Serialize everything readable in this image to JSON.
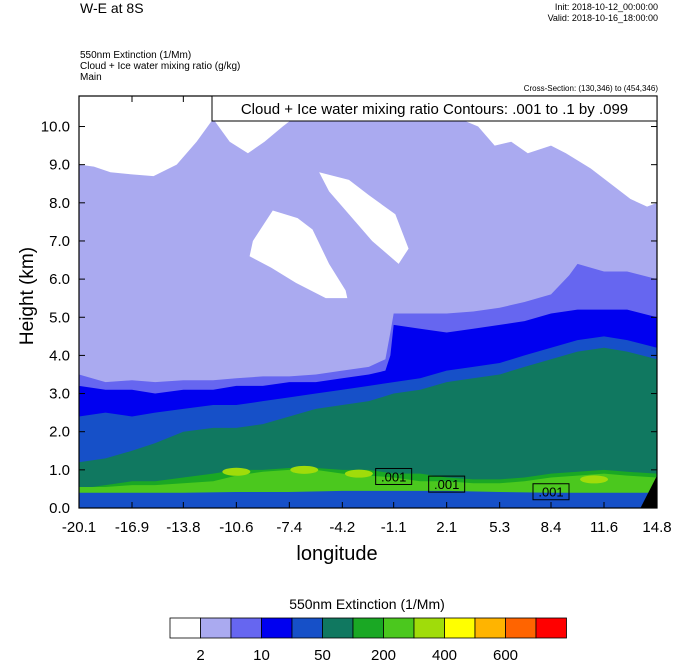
{
  "header": {
    "title": "W-E at 8S",
    "init": "Init: 2018-10-12_00:00:00",
    "valid": "Valid: 2018-10-16_18:00:00",
    "variable1": "550nm Extinction   (1/Mm)",
    "variable2": "Cloud + Ice water mixing ratio   (g/kg)",
    "variable3": "Main",
    "cross_section": "Cross-Section: (130,346) to (454,346)"
  },
  "chart_data": {
    "type": "contour",
    "title": "W-E at 8S",
    "xlabel": "longitude",
    "ylabel": "Height (km)",
    "xlim": [
      -20.1,
      14.8
    ],
    "ylim": [
      0,
      10.8
    ],
    "x_ticks": [
      "-20.1",
      "-16.9",
      "-13.8",
      "-10.6",
      "-7.4",
      "-4.2",
      "-1.1",
      "2.1",
      "5.3",
      "8.4",
      "11.6",
      "14.8"
    ],
    "x_tick_values": [
      -20.1,
      -16.9,
      -13.8,
      -10.6,
      -7.4,
      -4.2,
      -1.1,
      2.1,
      5.3,
      8.4,
      11.6,
      14.8
    ],
    "y_ticks": [
      "0.0",
      "1.0",
      "2.0",
      "3.0",
      "4.0",
      "5.0",
      "6.0",
      "7.0",
      "8.0",
      "9.0",
      "10.0"
    ],
    "y_tick_values": [
      0,
      1,
      2,
      3,
      4,
      5,
      6,
      7,
      8,
      9,
      10
    ],
    "contour_info": "Cloud + Ice water mixing ratio Contours: .001 to .1 by .099",
    "contour_labels": [
      {
        "text": ".001",
        "x": -1.1,
        "y": 0.8
      },
      {
        "text": ".001",
        "x": 2.1,
        "y": 0.6
      },
      {
        "text": ".001",
        "x": 8.4,
        "y": 0.4
      }
    ],
    "colorbar": {
      "title": "550nm Extinction  (1/Mm)",
      "colors": [
        "#ffffff",
        "#aaaaf0",
        "#6666f0",
        "#0000f0",
        "#1650c8",
        "#107860",
        "#1aa824",
        "#4bc81e",
        "#a0dc0a",
        "#ffff00",
        "#ffb400",
        "#ff6400",
        "#ff0000"
      ],
      "labels": [
        "2",
        "10",
        "50",
        "200",
        "400",
        "600"
      ]
    },
    "layers": [
      {
        "level": "2",
        "color": "#aaaaf0",
        "top": [
          [
            -20.1,
            10.8
          ],
          [
            14.8,
            10.8
          ]
        ]
      },
      {
        "level": "10",
        "color": "#6666f0",
        "top": [
          [
            -20.1,
            3.5
          ],
          [
            -18.5,
            3.3
          ],
          [
            -16.9,
            3.35
          ],
          [
            -15.5,
            3.3
          ],
          [
            -13.8,
            3.35
          ],
          [
            -12.0,
            3.35
          ],
          [
            -10.6,
            3.4
          ],
          [
            -9.0,
            3.45
          ],
          [
            -7.4,
            3.45
          ],
          [
            -5.8,
            3.5
          ],
          [
            -4.2,
            3.6
          ],
          [
            -2.6,
            3.7
          ],
          [
            -1.6,
            3.9
          ],
          [
            -1.3,
            4.6
          ],
          [
            -1.1,
            5.1
          ],
          [
            0.5,
            5.1
          ],
          [
            2.1,
            5.1
          ],
          [
            3.7,
            5.15
          ],
          [
            5.3,
            5.25
          ],
          [
            6.8,
            5.4
          ],
          [
            8.4,
            5.6
          ],
          [
            9.5,
            6.1
          ],
          [
            10.0,
            6.4
          ],
          [
            11.6,
            6.2
          ],
          [
            13.0,
            6.2
          ],
          [
            14.8,
            6.0
          ]
        ]
      },
      {
        "level": "50",
        "color": "#0000f0",
        "top": [
          [
            -20.1,
            3.2
          ],
          [
            -18.5,
            3.1
          ],
          [
            -16.9,
            3.1
          ],
          [
            -15.5,
            3.0
          ],
          [
            -13.8,
            3.1
          ],
          [
            -12.0,
            3.1
          ],
          [
            -10.6,
            3.2
          ],
          [
            -9.0,
            3.2
          ],
          [
            -7.4,
            3.3
          ],
          [
            -5.8,
            3.3
          ],
          [
            -4.2,
            3.4
          ],
          [
            -2.6,
            3.5
          ],
          [
            -1.6,
            3.6
          ],
          [
            -1.3,
            4.0
          ],
          [
            -1.1,
            4.8
          ],
          [
            0.5,
            4.7
          ],
          [
            2.1,
            4.6
          ],
          [
            3.7,
            4.7
          ],
          [
            5.3,
            4.8
          ],
          [
            6.8,
            4.9
          ],
          [
            8.4,
            5.1
          ],
          [
            10.0,
            5.2
          ],
          [
            11.6,
            5.2
          ],
          [
            13.0,
            5.2
          ],
          [
            14.8,
            5.0
          ]
        ]
      },
      {
        "level": "100",
        "color": "#1650c8",
        "top": [
          [
            -20.1,
            2.4
          ],
          [
            -18.5,
            2.5
          ],
          [
            -16.9,
            2.4
          ],
          [
            -15.5,
            2.5
          ],
          [
            -13.8,
            2.6
          ],
          [
            -12.0,
            2.7
          ],
          [
            -10.6,
            2.7
          ],
          [
            -9.0,
            2.8
          ],
          [
            -7.4,
            2.9
          ],
          [
            -5.8,
            3.0
          ],
          [
            -4.2,
            3.1
          ],
          [
            -2.6,
            3.2
          ],
          [
            -1.1,
            3.3
          ],
          [
            0.5,
            3.4
          ],
          [
            2.1,
            3.6
          ],
          [
            3.7,
            3.7
          ],
          [
            5.3,
            3.8
          ],
          [
            6.8,
            4.0
          ],
          [
            8.4,
            4.2
          ],
          [
            10.0,
            4.4
          ],
          [
            11.6,
            4.5
          ],
          [
            13.0,
            4.4
          ],
          [
            14.8,
            4.2
          ]
        ]
      },
      {
        "level": "150",
        "color": "#107860",
        "top": [
          [
            -20.1,
            1.2
          ],
          [
            -18.5,
            1.3
          ],
          [
            -16.9,
            1.5
          ],
          [
            -15.5,
            1.7
          ],
          [
            -13.8,
            2.0
          ],
          [
            -12.0,
            2.1
          ],
          [
            -10.6,
            2.1
          ],
          [
            -9.0,
            2.2
          ],
          [
            -7.4,
            2.4
          ],
          [
            -5.8,
            2.6
          ],
          [
            -4.2,
            2.7
          ],
          [
            -2.6,
            2.8
          ],
          [
            -1.1,
            3.0
          ],
          [
            0.5,
            3.1
          ],
          [
            2.1,
            3.3
          ],
          [
            3.7,
            3.4
          ],
          [
            5.3,
            3.5
          ],
          [
            6.8,
            3.7
          ],
          [
            8.4,
            3.9
          ],
          [
            10.0,
            4.1
          ],
          [
            11.6,
            4.2
          ],
          [
            13.0,
            4.1
          ],
          [
            14.8,
            3.9
          ]
        ]
      },
      {
        "level": "200",
        "color": "#1aa824",
        "top": [
          [
            -20.1,
            0.5
          ],
          [
            -18.5,
            0.6
          ],
          [
            -16.9,
            0.7
          ],
          [
            -15.5,
            0.7
          ],
          [
            -13.8,
            0.8
          ],
          [
            -12.0,
            0.9
          ],
          [
            -10.6,
            1.0
          ],
          [
            -9.0,
            1.0
          ],
          [
            -7.4,
            1.05
          ],
          [
            -5.8,
            1.05
          ],
          [
            -4.2,
            1.0
          ],
          [
            -2.6,
            1.0
          ],
          [
            -1.1,
            0.9
          ],
          [
            0.5,
            0.9
          ],
          [
            2.1,
            0.8
          ],
          [
            3.7,
            0.75
          ],
          [
            5.3,
            0.75
          ],
          [
            6.8,
            0.8
          ],
          [
            8.4,
            0.9
          ],
          [
            10.0,
            0.95
          ],
          [
            11.6,
            1.0
          ],
          [
            13.0,
            0.95
          ],
          [
            14.8,
            0.9
          ]
        ]
      },
      {
        "level": "300",
        "color": "#4bc81e",
        "top": [
          [
            -20.1,
            0.55
          ],
          [
            -18.5,
            0.55
          ],
          [
            -16.9,
            0.6
          ],
          [
            -15.5,
            0.6
          ],
          [
            -13.8,
            0.65
          ],
          [
            -12.0,
            0.7
          ],
          [
            -10.6,
            0.85
          ],
          [
            -9.0,
            0.95
          ],
          [
            -7.4,
            1.0
          ],
          [
            -5.8,
            1.0
          ],
          [
            -4.2,
            0.9
          ],
          [
            -2.6,
            0.85
          ],
          [
            -1.1,
            0.8
          ],
          [
            0.5,
            0.7
          ],
          [
            2.1,
            0.7
          ],
          [
            3.7,
            0.65
          ],
          [
            5.3,
            0.65
          ],
          [
            6.8,
            0.7
          ],
          [
            8.4,
            0.8
          ],
          [
            10.0,
            0.85
          ],
          [
            11.6,
            0.9
          ],
          [
            13.0,
            0.85
          ],
          [
            14.8,
            0.8
          ]
        ]
      },
      {
        "level": "50",
        "color": "#1650c8",
        "top": [
          [
            -20.1,
            0.4
          ],
          [
            -16.9,
            0.4
          ],
          [
            -13.8,
            0.4
          ],
          [
            -10.6,
            0.42
          ],
          [
            -7.4,
            0.42
          ],
          [
            -4.2,
            0.45
          ],
          [
            -1.1,
            0.45
          ],
          [
            2.1,
            0.45
          ],
          [
            5.3,
            0.42
          ],
          [
            8.4,
            0.4
          ],
          [
            11.6,
            0.4
          ],
          [
            14.8,
            0.4
          ]
        ]
      }
    ],
    "white_regions": [
      [
        [
          -20.1,
          10.8
        ],
        [
          -11.0,
          10.8
        ],
        [
          -12.0,
          10.2
        ],
        [
          -13.0,
          9.6
        ],
        [
          -14.2,
          9.0
        ],
        [
          -15.6,
          8.7
        ],
        [
          -17.0,
          8.75
        ],
        [
          -18.2,
          8.8
        ],
        [
          -19.2,
          8.95
        ],
        [
          -20.1,
          9.0
        ]
      ],
      [
        [
          -12.6,
          10.8
        ],
        [
          -5.8,
          10.8
        ],
        [
          -6.6,
          10.4
        ],
        [
          -7.8,
          10.0
        ],
        [
          -8.9,
          9.6
        ],
        [
          -9.9,
          9.3
        ],
        [
          -11.0,
          9.6
        ],
        [
          -12.0,
          10.2
        ]
      ],
      [
        [
          -9.6,
          7.0
        ],
        [
          -8.4,
          7.8
        ],
        [
          -6.9,
          7.6
        ],
        [
          -6.0,
          7.3
        ],
        [
          -5.0,
          6.4
        ],
        [
          -4.0,
          5.7
        ],
        [
          -3.9,
          5.5
        ],
        [
          -5.2,
          5.5
        ],
        [
          -7.0,
          5.9
        ],
        [
          -8.5,
          6.3
        ],
        [
          -9.8,
          6.6
        ]
      ],
      [
        [
          -5.6,
          8.8
        ],
        [
          -3.8,
          8.6
        ],
        [
          -2.6,
          8.2
        ],
        [
          -1.0,
          7.7
        ],
        [
          -0.2,
          6.8
        ],
        [
          -0.8,
          6.4
        ],
        [
          -2.4,
          7.0
        ],
        [
          -3.8,
          7.7
        ],
        [
          -5.0,
          8.3
        ]
      ],
      [
        [
          1.5,
          10.8
        ],
        [
          14.8,
          10.8
        ],
        [
          14.8,
          8.0
        ],
        [
          14.2,
          7.9
        ],
        [
          13.2,
          8.1
        ],
        [
          12.0,
          8.5
        ],
        [
          10.8,
          8.9
        ],
        [
          9.3,
          9.3
        ],
        [
          8.4,
          9.5
        ],
        [
          7.0,
          9.3
        ],
        [
          6.0,
          9.6
        ],
        [
          5.0,
          9.5
        ],
        [
          4.0,
          10.0
        ],
        [
          2.9,
          10.2
        ]
      ]
    ],
    "extinction_hotspots": [
      {
        "x": -10.6,
        "y": 0.95
      },
      {
        "x": -6.5,
        "y": 1.0
      },
      {
        "x": -3.2,
        "y": 0.9
      },
      {
        "x": 11.0,
        "y": 0.75
      }
    ]
  }
}
